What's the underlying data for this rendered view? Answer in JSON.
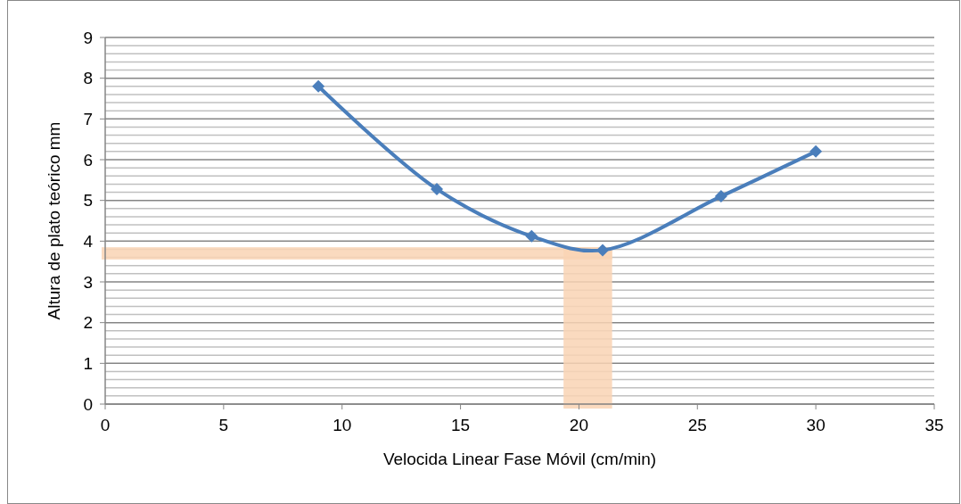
{
  "chart_data": {
    "type": "line",
    "xlabel": "Velocida Linear Fase Móvil (cm/min)",
    "ylabel": "Altura de plato teórico mm",
    "x": [
      9,
      14,
      18,
      21,
      26,
      30
    ],
    "series": [
      {
        "color": "#4a7ebb",
        "values": [
          7.8,
          5.28,
          4.12,
          3.78,
          5.1,
          6.2
        ]
      }
    ],
    "xlim": [
      0,
      35
    ],
    "xticks": [
      0,
      5,
      10,
      15,
      20,
      25,
      30,
      35
    ],
    "ylim": [
      0,
      9
    ],
    "yticks": [
      0,
      {
        "value": 0.2,
        "label": null
      },
      {
        "value": 0.4,
        "label": null
      },
      {
        "value": 0.6,
        "label": null
      },
      {
        "value": 0.8,
        "label": null
      },
      1,
      {
        "value": 1.2,
        "label": null
      },
      {
        "value": 1.4,
        "label": null
      },
      {
        "value": 1.6,
        "label": null
      },
      {
        "value": 1.8,
        "label": null
      },
      2,
      {
        "value": 2.2,
        "label": null
      },
      {
        "value": 2.4,
        "label": null
      },
      {
        "value": 2.6,
        "label": null
      },
      {
        "value": 2.8,
        "label": null
      },
      3,
      {
        "value": 3.2,
        "label": null
      },
      {
        "value": 3.4,
        "label": null
      },
      {
        "value": 3.6,
        "label": null
      },
      {
        "value": 3.8,
        "label": null
      },
      4,
      {
        "value": 4.2,
        "label": null
      },
      {
        "value": 4.4,
        "label": null
      },
      {
        "value": 4.6,
        "label": null
      },
      {
        "value": 4.8,
        "label": null
      },
      5,
      {
        "value": 5.2,
        "label": null
      },
      {
        "value": 5.4,
        "label": null
      },
      {
        "value": 5.6,
        "label": null
      },
      {
        "value": 5.8,
        "label": null
      },
      6,
      {
        "value": 6.2,
        "label": null
      },
      {
        "value": 6.4,
        "label": null
      },
      {
        "value": 6.6,
        "label": null
      },
      {
        "value": 6.8,
        "label": null
      },
      7,
      {
        "value": 7.2,
        "label": null
      },
      {
        "value": 7.4,
        "label": null
      },
      {
        "value": 7.6,
        "label": null
      },
      {
        "value": 7.8,
        "label": null
      },
      8,
      {
        "value": 8.2,
        "label": null
      },
      {
        "value": 8.4,
        "label": null
      },
      {
        "value": 8.6,
        "label": null
      },
      {
        "value": 8.8,
        "label": null
      },
      9
    ],
    "bands": [
      {
        "axis": "y",
        "from": 3.55,
        "to": 3.85,
        "color": "#f9d4b4"
      },
      {
        "axis": "x",
        "from": 19.35,
        "to": 21.4,
        "color": "#f9d4b4"
      }
    ],
    "grid": "y",
    "marker": "diamond",
    "line_style": "solid"
  }
}
